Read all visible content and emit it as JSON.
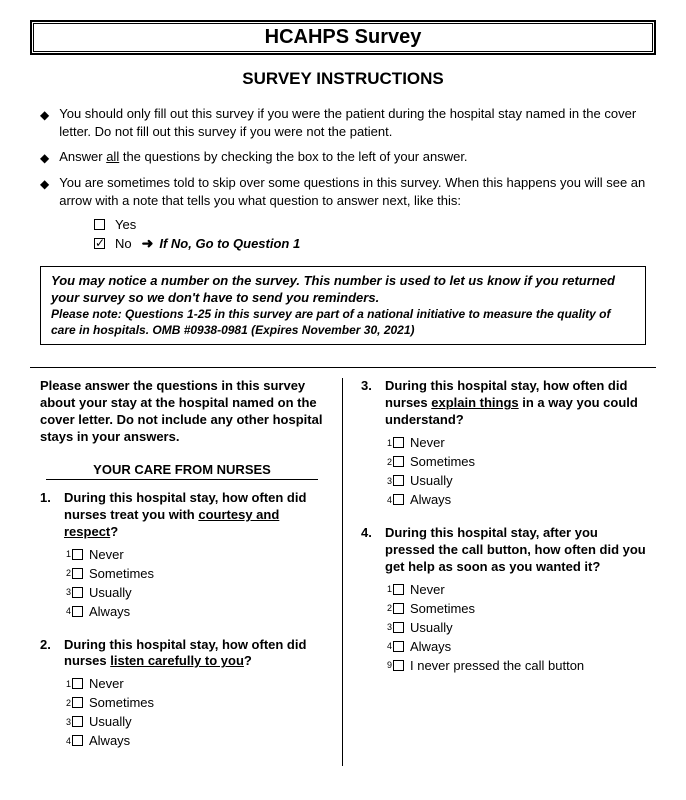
{
  "title": "HCAHPS Survey",
  "subtitle": "SURVEY INSTRUCTIONS",
  "instructions": {
    "i1": "You should only fill out this survey if you were the patient during the hospital stay named in the cover letter. Do not fill out this survey if you were not the patient.",
    "i2_pre": "Answer ",
    "i2_u": "all",
    "i2_post": " the questions by checking the box to the left of your answer.",
    "i3": "You are sometimes told to skip over some questions in this survey. When this happens you will see an arrow with a note that tells you what question to answer next, like this:"
  },
  "example": {
    "yes": "Yes",
    "no": "No",
    "skip": "If No, Go to Question 1"
  },
  "notice": {
    "main": "You may notice a number on the survey. This number is used to let us know if you returned your survey so we don't have to send you reminders.",
    "sub": "Please note: Questions 1-25 in this survey are part of a national initiative to measure the quality of care in hospitals. OMB #0938-0981 (Expires November 30, 2021)"
  },
  "intro": "Please answer the questions in this survey about your stay at the hospital named on the cover letter. Do not include any other hospital stays in your answers.",
  "section1": "YOUR CARE FROM NURSES",
  "q1": {
    "num": "1.",
    "pre": "During this hospital stay, how often did nurses treat you with ",
    "u": "courtesy and respect",
    "post": "?"
  },
  "q2": {
    "num": "2.",
    "pre": "During this hospital stay, how often did nurses ",
    "u": "listen carefully to you",
    "post": "?"
  },
  "q3": {
    "num": "3.",
    "pre": "During this hospital stay, how often did nurses ",
    "u": "explain things",
    "post": " in a way you could understand?"
  },
  "q4": {
    "num": "4.",
    "text": "During this hospital stay, after you pressed the call button, how often did you get help as soon as you wanted it?"
  },
  "opts": {
    "o1": "Never",
    "o2": "Sometimes",
    "o3": "Usually",
    "o4": "Always",
    "o9": "I never pressed the call button"
  },
  "sup": {
    "s1": "1",
    "s2": "2",
    "s3": "3",
    "s4": "4",
    "s9": "9"
  }
}
